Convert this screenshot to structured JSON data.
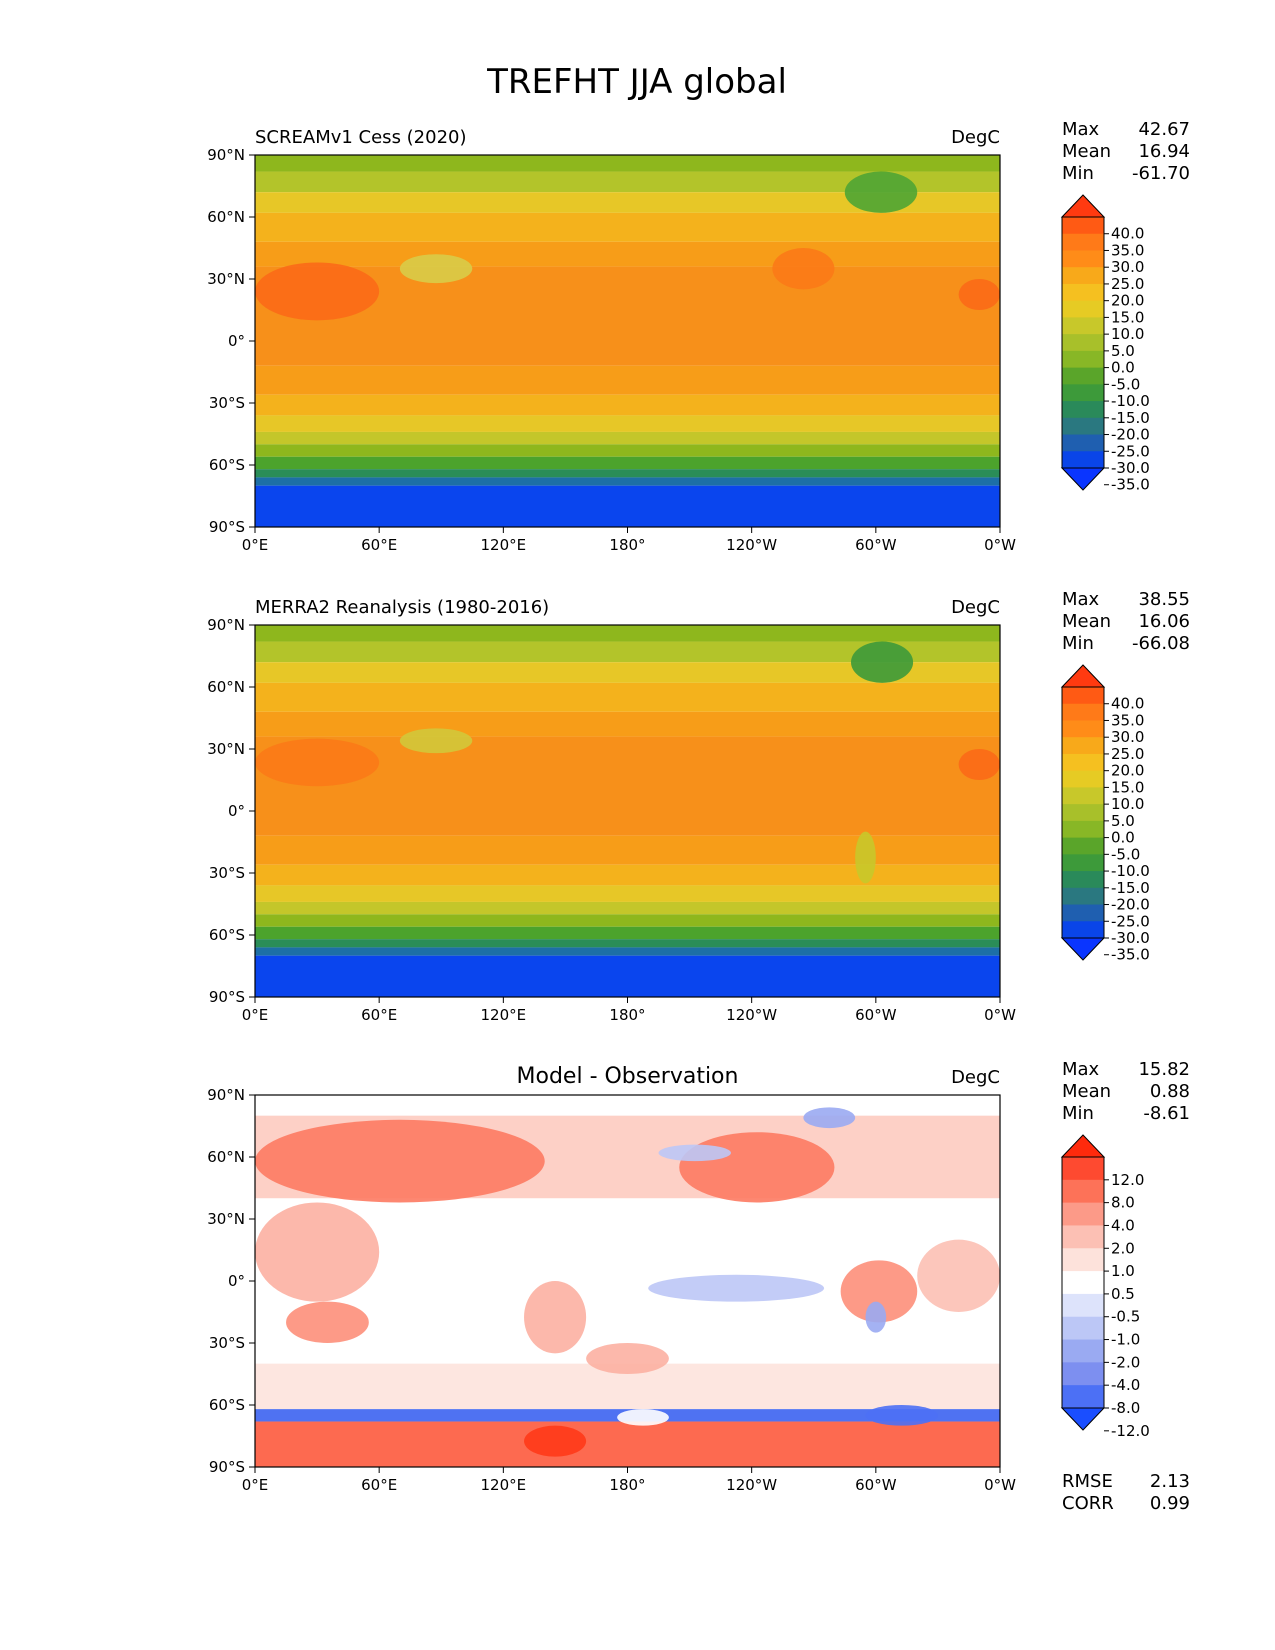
{
  "figure_title": "TREFHT JJA global",
  "lat_ticks": [
    "90°N",
    "60°N",
    "30°N",
    "0°",
    "30°S",
    "60°S",
    "90°S"
  ],
  "lon_ticks": [
    "0°E",
    "60°E",
    "120°E",
    "180°",
    "120°W",
    "60°W",
    "0°W"
  ],
  "chart_data": [
    {
      "type": "heatmap",
      "title": "SCREAMv1 Cess (2020)",
      "units": "DegC",
      "stats": [
        {
          "label": "Max",
          "value": "42.67"
        },
        {
          "label": "Mean",
          "value": "16.94"
        },
        {
          "label": "Min",
          "value": "-61.70"
        }
      ],
      "colorbar": {
        "ticks": [
          "40.0",
          "35.0",
          "30.0",
          "25.0",
          "20.0",
          "15.0",
          "10.0",
          "5.0",
          "0.0",
          "-5.0",
          "-10.0",
          "-15.0",
          "-20.0",
          "-25.0",
          "-30.0",
          "-35.0"
        ],
        "colors": [
          "#ff3a10",
          "#ff5a14",
          "#ff7a18",
          "#ff8c18",
          "#f8a91a",
          "#f5c020",
          "#e6cb24",
          "#c8c82a",
          "#a8c02a",
          "#88b726",
          "#5aa52a",
          "#3d9a3a",
          "#2a8a5a",
          "#2a7880",
          "#1f5fb0",
          "#0a45e8",
          "#0a35ff"
        ],
        "extend": "both"
      },
      "bands": [
        {
          "lat": [
            90,
            82
          ],
          "color": "#8eb71d"
        },
        {
          "lat": [
            82,
            72
          ],
          "color": "#b3c42a"
        },
        {
          "lat": [
            72,
            62
          ],
          "color": "#e7c727"
        },
        {
          "lat": [
            62,
            48
          ],
          "color": "#f4b21c"
        },
        {
          "lat": [
            48,
            36
          ],
          "color": "#f79d18"
        },
        {
          "lat": [
            36,
            -12
          ],
          "color": "#f7901a"
        },
        {
          "lat": [
            -12,
            -26
          ],
          "color": "#f79d18"
        },
        {
          "lat": [
            -26,
            -36
          ],
          "color": "#f4b21c"
        },
        {
          "lat": [
            -36,
            -44
          ],
          "color": "#e7c727"
        },
        {
          "lat": [
            -44,
            -50
          ],
          "color": "#c4c62a"
        },
        {
          "lat": [
            -50,
            -56
          ],
          "color": "#8eb71d"
        },
        {
          "lat": [
            -56,
            -62
          ],
          "color": "#4ca32c"
        },
        {
          "lat": [
            -62,
            -66
          ],
          "color": "#2a8d58"
        },
        {
          "lat": [
            -66,
            -70
          ],
          "color": "#1d6fa6"
        },
        {
          "lat": [
            -70,
            -90
          ],
          "color": "#0a45ee"
        }
      ],
      "regions": [
        {
          "lon": [
            0,
            60
          ],
          "lat": [
            38,
            10
          ],
          "color": "#fb6a17"
        },
        {
          "lon": [
            70,
            105
          ],
          "lat": [
            42,
            28
          ],
          "color": "#d8cc48"
        },
        {
          "lon": [
            250,
            280
          ],
          "lat": [
            45,
            25
          ],
          "color": "#fb7a17"
        },
        {
          "lon": [
            285,
            320
          ],
          "lat": [
            82,
            62
          ],
          "color": "#4fa534"
        },
        {
          "lon": [
            340,
            360
          ],
          "lat": [
            30,
            15
          ],
          "color": "#fb6a17"
        }
      ]
    },
    {
      "type": "heatmap",
      "title": "MERRA2 Reanalysis (1980-2016)",
      "units": "DegC",
      "stats": [
        {
          "label": "Max",
          "value": "38.55"
        },
        {
          "label": "Mean",
          "value": "16.06"
        },
        {
          "label": "Min",
          "value": "-66.08"
        }
      ],
      "colorbar": {
        "ticks": [
          "40.0",
          "35.0",
          "30.0",
          "25.0",
          "20.0",
          "15.0",
          "10.0",
          "5.0",
          "0.0",
          "-5.0",
          "-10.0",
          "-15.0",
          "-20.0",
          "-25.0",
          "-30.0",
          "-35.0"
        ],
        "colors": [
          "#ff3a10",
          "#ff5a14",
          "#ff7a18",
          "#ff8c18",
          "#f8a91a",
          "#f5c020",
          "#e6cb24",
          "#c8c82a",
          "#a8c02a",
          "#88b726",
          "#5aa52a",
          "#3d9a3a",
          "#2a8a5a",
          "#2a7880",
          "#1f5fb0",
          "#0a45e8",
          "#0a35ff"
        ],
        "extend": "both"
      },
      "bands": [
        {
          "lat": [
            90,
            82
          ],
          "color": "#8eb71d"
        },
        {
          "lat": [
            82,
            72
          ],
          "color": "#b3c42a"
        },
        {
          "lat": [
            72,
            62
          ],
          "color": "#e7c727"
        },
        {
          "lat": [
            62,
            48
          ],
          "color": "#f4b21c"
        },
        {
          "lat": [
            48,
            36
          ],
          "color": "#f79d18"
        },
        {
          "lat": [
            36,
            -12
          ],
          "color": "#f7901a"
        },
        {
          "lat": [
            -12,
            -26
          ],
          "color": "#f79d18"
        },
        {
          "lat": [
            -26,
            -36
          ],
          "color": "#f4b21c"
        },
        {
          "lat": [
            -36,
            -44
          ],
          "color": "#e7c727"
        },
        {
          "lat": [
            -44,
            -50
          ],
          "color": "#c4c62a"
        },
        {
          "lat": [
            -50,
            -56
          ],
          "color": "#8eb71d"
        },
        {
          "lat": [
            -56,
            -62
          ],
          "color": "#4ca32c"
        },
        {
          "lat": [
            -62,
            -66
          ],
          "color": "#2a8d58"
        },
        {
          "lat": [
            -66,
            -70
          ],
          "color": "#1d6fa6"
        },
        {
          "lat": [
            -70,
            -90
          ],
          "color": "#0a45ee"
        }
      ],
      "regions": [
        {
          "lon": [
            0,
            60
          ],
          "lat": [
            35,
            12
          ],
          "color": "#fb7a17"
        },
        {
          "lon": [
            70,
            105
          ],
          "lat": [
            40,
            28
          ],
          "color": "#d2c83a"
        },
        {
          "lon": [
            288,
            318
          ],
          "lat": [
            82,
            62
          ],
          "color": "#3d9a3a"
        },
        {
          "lon": [
            290,
            300
          ],
          "lat": [
            -10,
            -35
          ],
          "color": "#c8c82a"
        },
        {
          "lon": [
            340,
            360
          ],
          "lat": [
            30,
            15
          ],
          "color": "#fb6a17"
        }
      ]
    },
    {
      "type": "heatmap",
      "title": "Model - Observation",
      "units": "DegC",
      "stats": [
        {
          "label": "Max",
          "value": "15.82"
        },
        {
          "label": "Mean",
          "value": "0.88"
        },
        {
          "label": "Min",
          "value": "-8.61"
        }
      ],
      "extra_stats": [
        {
          "label": "RMSE",
          "value": "2.13"
        },
        {
          "label": "CORR",
          "value": "0.99"
        }
      ],
      "colorbar": {
        "ticks": [
          "12.0",
          "8.0",
          "4.0",
          "2.0",
          "1.0",
          "0.5",
          "-0.5",
          "-1.0",
          "-2.0",
          "-4.0",
          "-8.0",
          "-12.0"
        ],
        "colors": [
          "#ff2a0c",
          "#fe4a30",
          "#fd7258",
          "#fc9a88",
          "#fcc0b4",
          "#fde2db",
          "#ffffff",
          "#dde3fb",
          "#bcc7f6",
          "#9aaaf2",
          "#7d8ff0",
          "#4c70f5",
          "#1a4eff"
        ],
        "extend": "both"
      },
      "bands": [
        {
          "lat": [
            90,
            80
          ],
          "color": "#ffffff"
        },
        {
          "lat": [
            80,
            40
          ],
          "color": "#fdd0c6"
        },
        {
          "lat": [
            40,
            -40
          ],
          "color": "#ffffff"
        },
        {
          "lat": [
            -40,
            -62
          ],
          "color": "#fde6e0"
        },
        {
          "lat": [
            -62,
            -68
          ],
          "color": "#4f72f2"
        },
        {
          "lat": [
            -68,
            -90
          ],
          "color": "#fd6a50"
        }
      ],
      "regions": [
        {
          "lon": [
            0,
            140
          ],
          "lat": [
            78,
            38
          ],
          "color": "#fd7a62"
        },
        {
          "lon": [
            205,
            280
          ],
          "lat": [
            72,
            38
          ],
          "color": "#fd7a62"
        },
        {
          "lon": [
            0,
            60
          ],
          "lat": [
            38,
            -10
          ],
          "color": "#fcb0a2"
        },
        {
          "lon": [
            15,
            55
          ],
          "lat": [
            -10,
            -30
          ],
          "color": "#fd8f7a"
        },
        {
          "lon": [
            130,
            160
          ],
          "lat": [
            0,
            -35
          ],
          "color": "#fcb0a2"
        },
        {
          "lon": [
            160,
            200
          ],
          "lat": [
            -30,
            -45
          ],
          "color": "#fcb0a2"
        },
        {
          "lon": [
            190,
            275
          ],
          "lat": [
            3,
            -10
          ],
          "color": "#bcc7f6"
        },
        {
          "lon": [
            283,
            320
          ],
          "lat": [
            10,
            -20
          ],
          "color": "#fd8f7a"
        },
        {
          "lon": [
            295,
            305
          ],
          "lat": [
            -10,
            -25
          ],
          "color": "#9aaaf2"
        },
        {
          "lon": [
            320,
            360
          ],
          "lat": [
            20,
            -15
          ],
          "color": "#fcc0b4"
        },
        {
          "lon": [
            195,
            230
          ],
          "lat": [
            66,
            58
          ],
          "color": "#bcc7f6"
        },
        {
          "lon": [
            265,
            290
          ],
          "lat": [
            84,
            74
          ],
          "color": "#9aaaf2"
        },
        {
          "lon": [
            175,
            200
          ],
          "lat": [
            -62,
            -70
          ],
          "color": "#ffffff"
        },
        {
          "lon": [
            130,
            160
          ],
          "lat": [
            -70,
            -85
          ],
          "color": "#ff3a18"
        },
        {
          "lon": [
            295,
            330
          ],
          "lat": [
            -60,
            -70
          ],
          "color": "#4c70f5"
        }
      ]
    }
  ]
}
